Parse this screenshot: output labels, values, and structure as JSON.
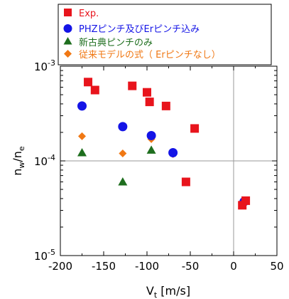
{
  "chart_data": {
    "type": "scatter",
    "xlabel": "V",
    "xlabel_sub": "t",
    "xlabel_unit": " [m/s]",
    "ylabel": "n",
    "ylabel_sub1": "w",
    "ylabel_mid": "/n",
    "ylabel_sub2": "e",
    "xlim": [
      -200,
      50
    ],
    "ylim": [
      1e-05,
      0.001
    ],
    "y_scale": "log",
    "x_ticks": [
      -200,
      -150,
      -100,
      -50,
      0,
      50
    ],
    "x_tick_labels": [
      "-200",
      "-150",
      "-100",
      "-50",
      "0",
      "50"
    ],
    "y_ticks": [
      1e-05,
      0.0001,
      0.001
    ],
    "y_tick_base": "10",
    "y_tick_exponents": [
      "-5",
      "-4",
      "-3"
    ],
    "reference_lines": {
      "x": 0,
      "y": 0.0001
    },
    "legend_position": "top",
    "series": [
      {
        "name": "Exp.",
        "marker": "square",
        "color": "#e8141c",
        "points": [
          {
            "x": -168,
            "y": 0.00068
          },
          {
            "x": -160,
            "y": 0.00056
          },
          {
            "x": -117,
            "y": 0.00062
          },
          {
            "x": -100,
            "y": 0.00053
          },
          {
            "x": -97,
            "y": 0.00042
          },
          {
            "x": -78,
            "y": 0.00038
          },
          {
            "x": -45,
            "y": 0.00022
          },
          {
            "x": -55,
            "y": 6e-05
          },
          {
            "x": 14,
            "y": 3.8e-05
          },
          {
            "x": 10,
            "y": 3.4e-05
          }
        ]
      },
      {
        "name": "PHZピンチ及びErピンチ込み",
        "marker": "circle",
        "color": "#1414e6",
        "points": [
          {
            "x": -175,
            "y": 0.00038
          },
          {
            "x": -128,
            "y": 0.00023
          },
          {
            "x": -95,
            "y": 0.000185
          },
          {
            "x": -70,
            "y": 0.000122
          },
          {
            "x": 12,
            "y": 3.7e-05
          }
        ]
      },
      {
        "name": "新古典ピンチのみ",
        "marker": "triangle",
        "color": "#1e6e1e",
        "points": [
          {
            "x": -175,
            "y": 0.000122
          },
          {
            "x": -128,
            "y": 6e-05
          },
          {
            "x": -95,
            "y": 0.00013
          }
        ]
      },
      {
        "name": "従来モデルの式（ Erピンチなし）",
        "marker": "diamond",
        "color": "#f07814",
        "points": [
          {
            "x": -175,
            "y": 0.000182
          },
          {
            "x": -128,
            "y": 0.00012
          },
          {
            "x": -95,
            "y": 0.00017
          },
          {
            "x": -70,
            "y": 0.000118
          },
          {
            "x": 10,
            "y": 3.5e-05
          }
        ]
      }
    ]
  }
}
